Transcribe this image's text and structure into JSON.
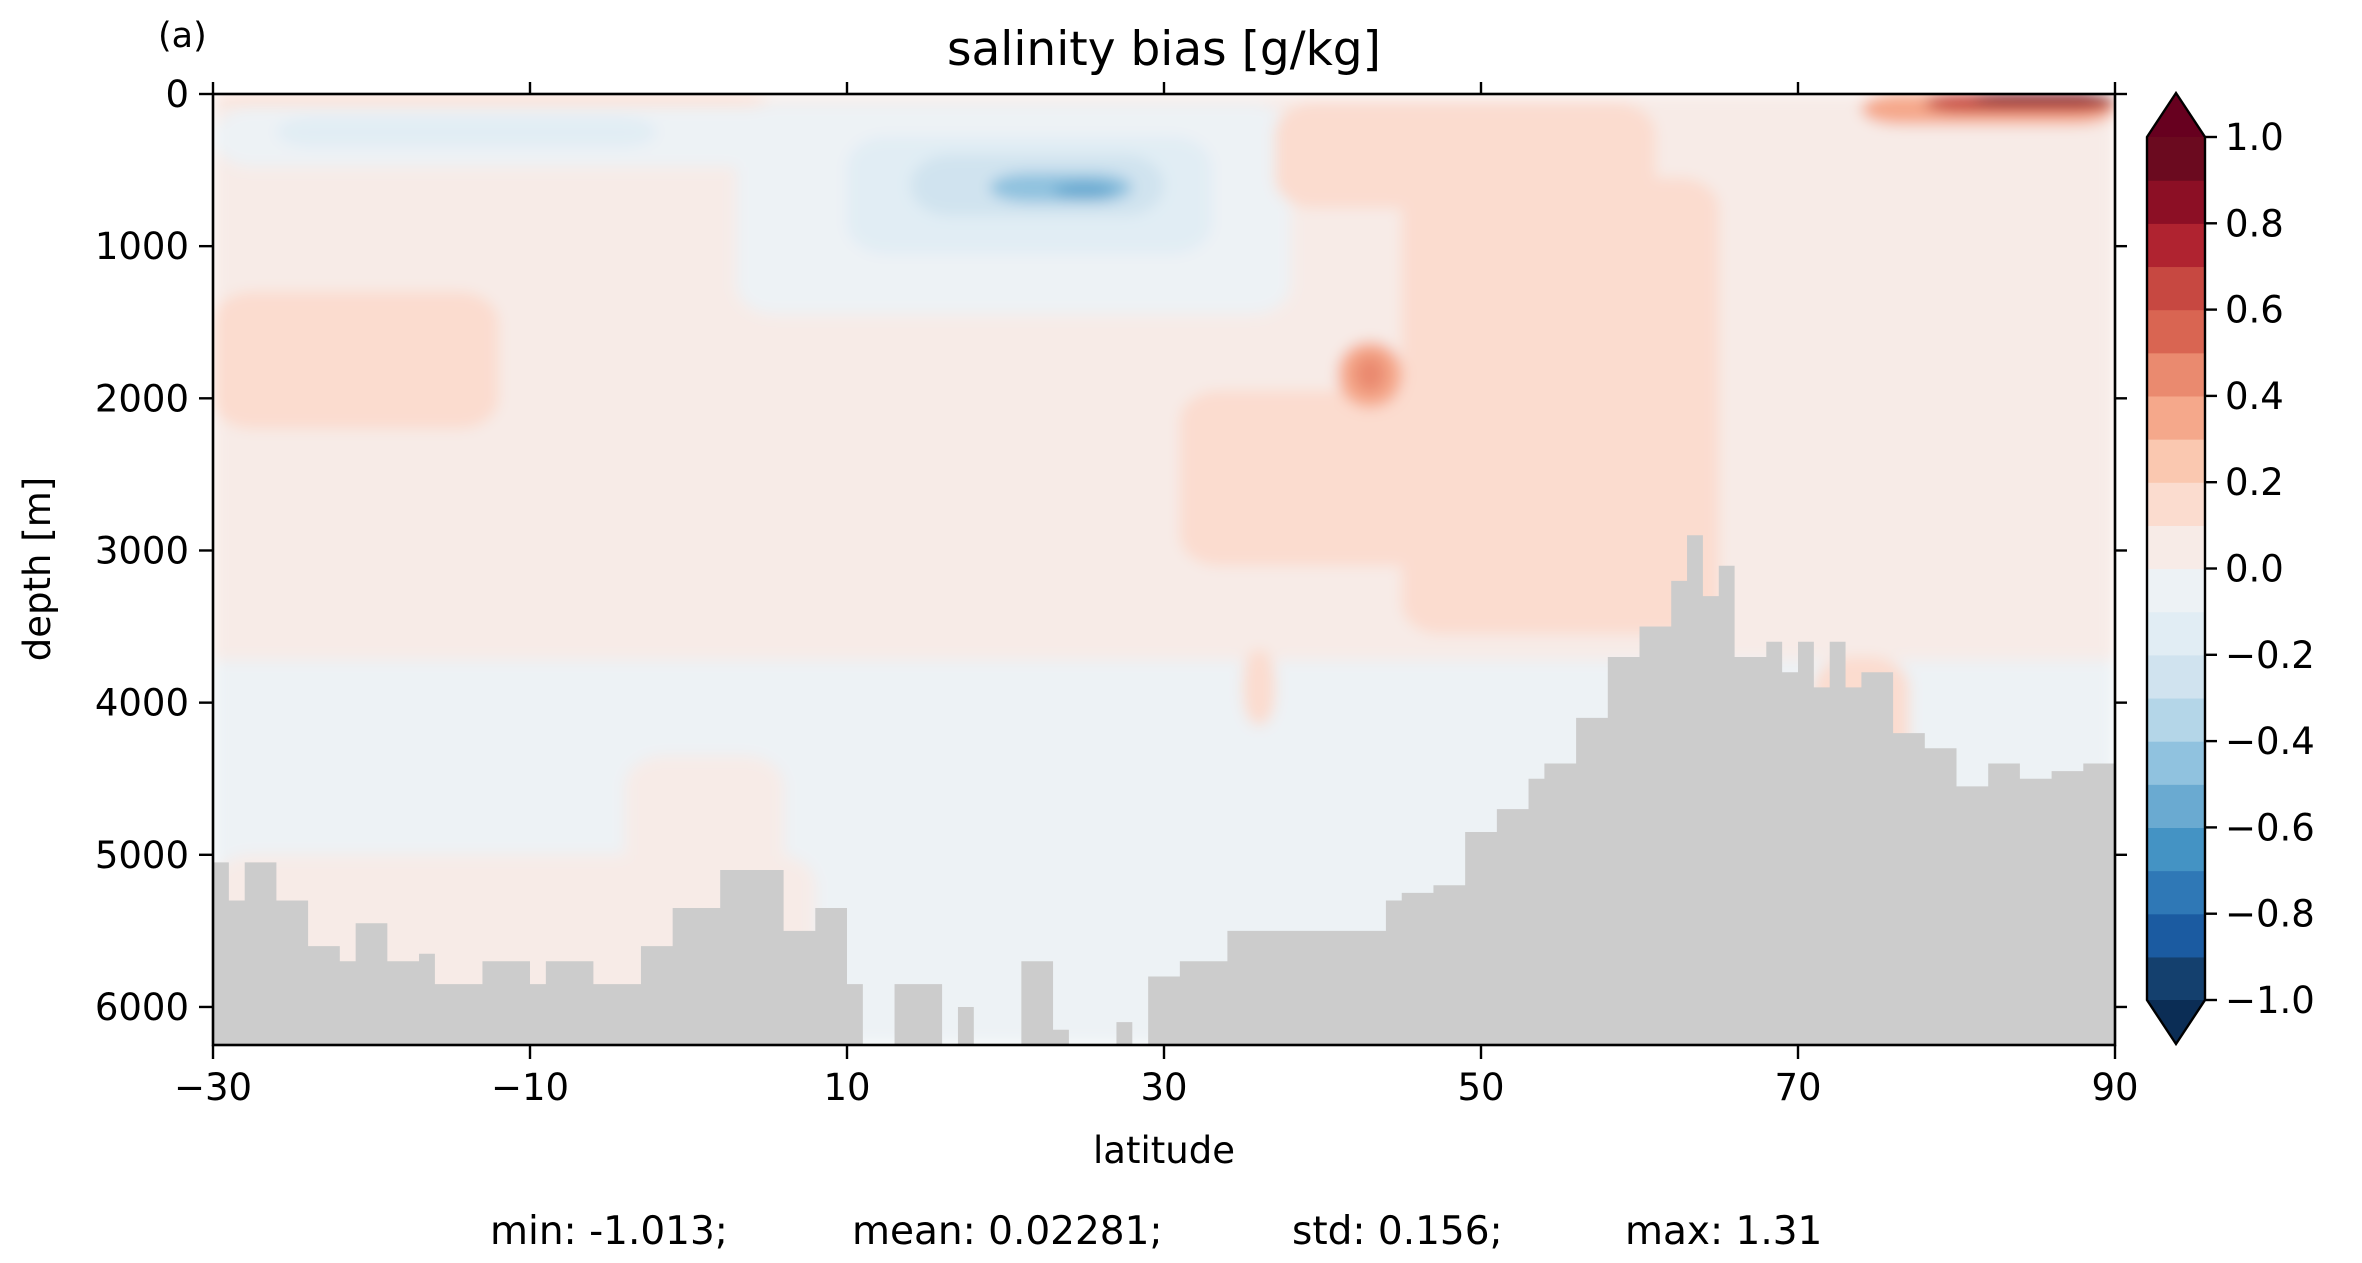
{
  "chart_data": {
    "type": "heatmap",
    "panel_label": "(a)",
    "title": "salinity bias [g/kg]",
    "xlabel": "latitude",
    "ylabel": "depth [m]",
    "xlim": [
      -30,
      90
    ],
    "ylim": [
      6250,
      0
    ],
    "y_inverted": true,
    "x_ticks": [
      -30,
      -10,
      10,
      30,
      50,
      70,
      90
    ],
    "x_tick_labels": [
      "−30",
      "−10",
      "10",
      "30",
      "50",
      "70",
      "90"
    ],
    "y_ticks": [
      0,
      1000,
      2000,
      3000,
      4000,
      5000,
      6000
    ],
    "y_tick_labels": [
      "0",
      "1000",
      "2000",
      "3000",
      "4000",
      "5000",
      "6000"
    ],
    "colormap": "RdBu_r",
    "colorbar": {
      "levels": [
        -1.0,
        -0.9,
        -0.8,
        -0.7,
        -0.6,
        -0.5,
        -0.4,
        -0.3,
        -0.2,
        -0.1,
        0.0,
        0.1,
        0.2,
        0.3,
        0.4,
        0.5,
        0.6,
        0.7,
        0.8,
        0.9,
        1.0
      ],
      "ticks": [
        1.0,
        0.8,
        0.6,
        0.4,
        0.2,
        0.0,
        -0.2,
        -0.4,
        -0.6,
        -0.8,
        -1.0
      ],
      "tick_labels": [
        "1.0",
        "0.8",
        "0.6",
        "0.4",
        "0.2",
        "0.0",
        "−0.2",
        "−0.4",
        "−0.6",
        "−0.8",
        "−1.0"
      ],
      "colors": [
        "#14406e",
        "#1b5ba1",
        "#2f78b6",
        "#4493c4",
        "#6aaad1",
        "#90c2df",
        "#b4d6e8",
        "#d0e3ef",
        "#e1edf4",
        "#edf2f5",
        "#f7ebe7",
        "#fbdccf",
        "#fac8b0",
        "#f5a88b",
        "#ea8a6f",
        "#d96552",
        "#c74841",
        "#b02330",
        "#8c0f25",
        "#6b0a1f"
      ],
      "extend": "both",
      "under_color": "#0b2d55",
      "over_color": "#67001f"
    },
    "bathymetry_color": "#cccccc",
    "fields": [
      {
        "lat": [
          -30,
          90
        ],
        "depth": [
          0,
          3720
        ],
        "bias": 0.05
      },
      {
        "lat": [
          -30,
          90
        ],
        "depth": [
          3720,
          6250
        ],
        "bias": -0.05
      },
      {
        "lat": [
          -30,
          8
        ],
        "depth": [
          5000,
          6250
        ],
        "bias": 0.05
      },
      {
        "lat": [
          -4,
          6
        ],
        "depth": [
          4350,
          5300
        ],
        "bias": 0.05
      },
      {
        "lat": [
          -30,
          14
        ],
        "depth": [
          90,
          480
        ],
        "bias": -0.1
      },
      {
        "lat": [
          -26,
          -2
        ],
        "depth": [
          150,
          350
        ],
        "bias": -0.2
      },
      {
        "lat": [
          3,
          38
        ],
        "depth": [
          60,
          1450
        ],
        "bias": -0.1
      },
      {
        "lat": [
          10,
          33
        ],
        "depth": [
          280,
          1050
        ],
        "bias": -0.2
      },
      {
        "lat": [
          14,
          30
        ],
        "depth": [
          400,
          800
        ],
        "bias": -0.3
      },
      {
        "lat": [
          19,
          28
        ],
        "depth": [
          520,
          710
        ],
        "bias": -0.45
      },
      {
        "lat": [
          23,
          27
        ],
        "depth": [
          580,
          690
        ],
        "bias": -0.55
      },
      {
        "lat": [
          -30,
          -12
        ],
        "depth": [
          1300,
          2200
        ],
        "bias": 0.15
      },
      {
        "lat": [
          45,
          65
        ],
        "depth": [
          550,
          3550
        ],
        "bias": 0.15
      },
      {
        "lat": [
          31,
          47
        ],
        "depth": [
          1950,
          3100
        ],
        "bias": 0.15
      },
      {
        "lat": [
          41,
          45
        ],
        "depth": [
          1630,
          2060
        ],
        "bias": 0.3
      },
      {
        "lat": [
          42,
          44
        ],
        "depth": [
          1720,
          1960
        ],
        "bias": 0.4
      },
      {
        "lat": [
          37,
          61
        ],
        "depth": [
          60,
          750
        ],
        "bias": 0.15
      },
      {
        "lat": [
          74,
          90
        ],
        "depth": [
          0,
          200
        ],
        "bias": 0.3
      },
      {
        "lat": [
          78,
          90
        ],
        "depth": [
          0,
          120
        ],
        "bias": 0.6
      },
      {
        "lat": [
          81,
          90
        ],
        "depth": [
          0,
          60
        ],
        "bias": 1.0
      },
      {
        "lat": [
          -30,
          5
        ],
        "depth": [
          0,
          60
        ],
        "bias": 0.15
      },
      {
        "lat": [
          35,
          37
        ],
        "depth": [
          3650,
          4150
        ],
        "bias": 0.15
      },
      {
        "lat": [
          71,
          77
        ],
        "depth": [
          3700,
          4500
        ],
        "bias": 0.15
      }
    ],
    "bathymetry": {
      "lat": [
        -30,
        -29,
        -28,
        -26,
        -24,
        -22,
        -21,
        -19,
        -17,
        -16,
        -13,
        -10,
        -9,
        -6,
        -3,
        -1,
        2,
        6,
        8,
        10,
        11,
        13,
        14,
        16,
        17,
        18,
        20,
        21,
        23,
        24,
        25,
        27,
        28,
        29,
        31,
        34,
        36,
        41,
        44,
        45,
        47,
        49,
        51,
        53,
        54,
        56,
        58,
        60,
        62,
        63,
        64,
        65,
        66,
        67,
        68,
        69,
        70,
        71,
        72,
        73,
        74,
        76,
        78,
        80,
        82,
        84,
        86,
        88,
        90
      ],
      "depth": [
        5050,
        5300,
        5050,
        5300,
        5600,
        5700,
        5450,
        5700,
        5650,
        5850,
        5700,
        5850,
        5700,
        5850,
        5600,
        5350,
        5100,
        5500,
        5350,
        5850,
        6250,
        5850,
        5850,
        6250,
        6000,
        6250,
        6250,
        5700,
        6150,
        6250,
        6250,
        6100,
        6250,
        5800,
        5700,
        5500,
        5500,
        5500,
        5300,
        5250,
        5200,
        4850,
        4700,
        4500,
        4400,
        4100,
        3700,
        3500,
        3200,
        2900,
        3300,
        3100,
        3700,
        3700,
        3600,
        3800,
        3600,
        3900,
        3600,
        3900,
        3800,
        4200,
        4300,
        4550,
        4400,
        4500,
        4450,
        4400,
        4400
      ]
    }
  },
  "stats": {
    "min": "min: -1.013;",
    "mean": "mean: 0.02281;",
    "std": "std: 0.156;",
    "max": "max: 1.31"
  }
}
